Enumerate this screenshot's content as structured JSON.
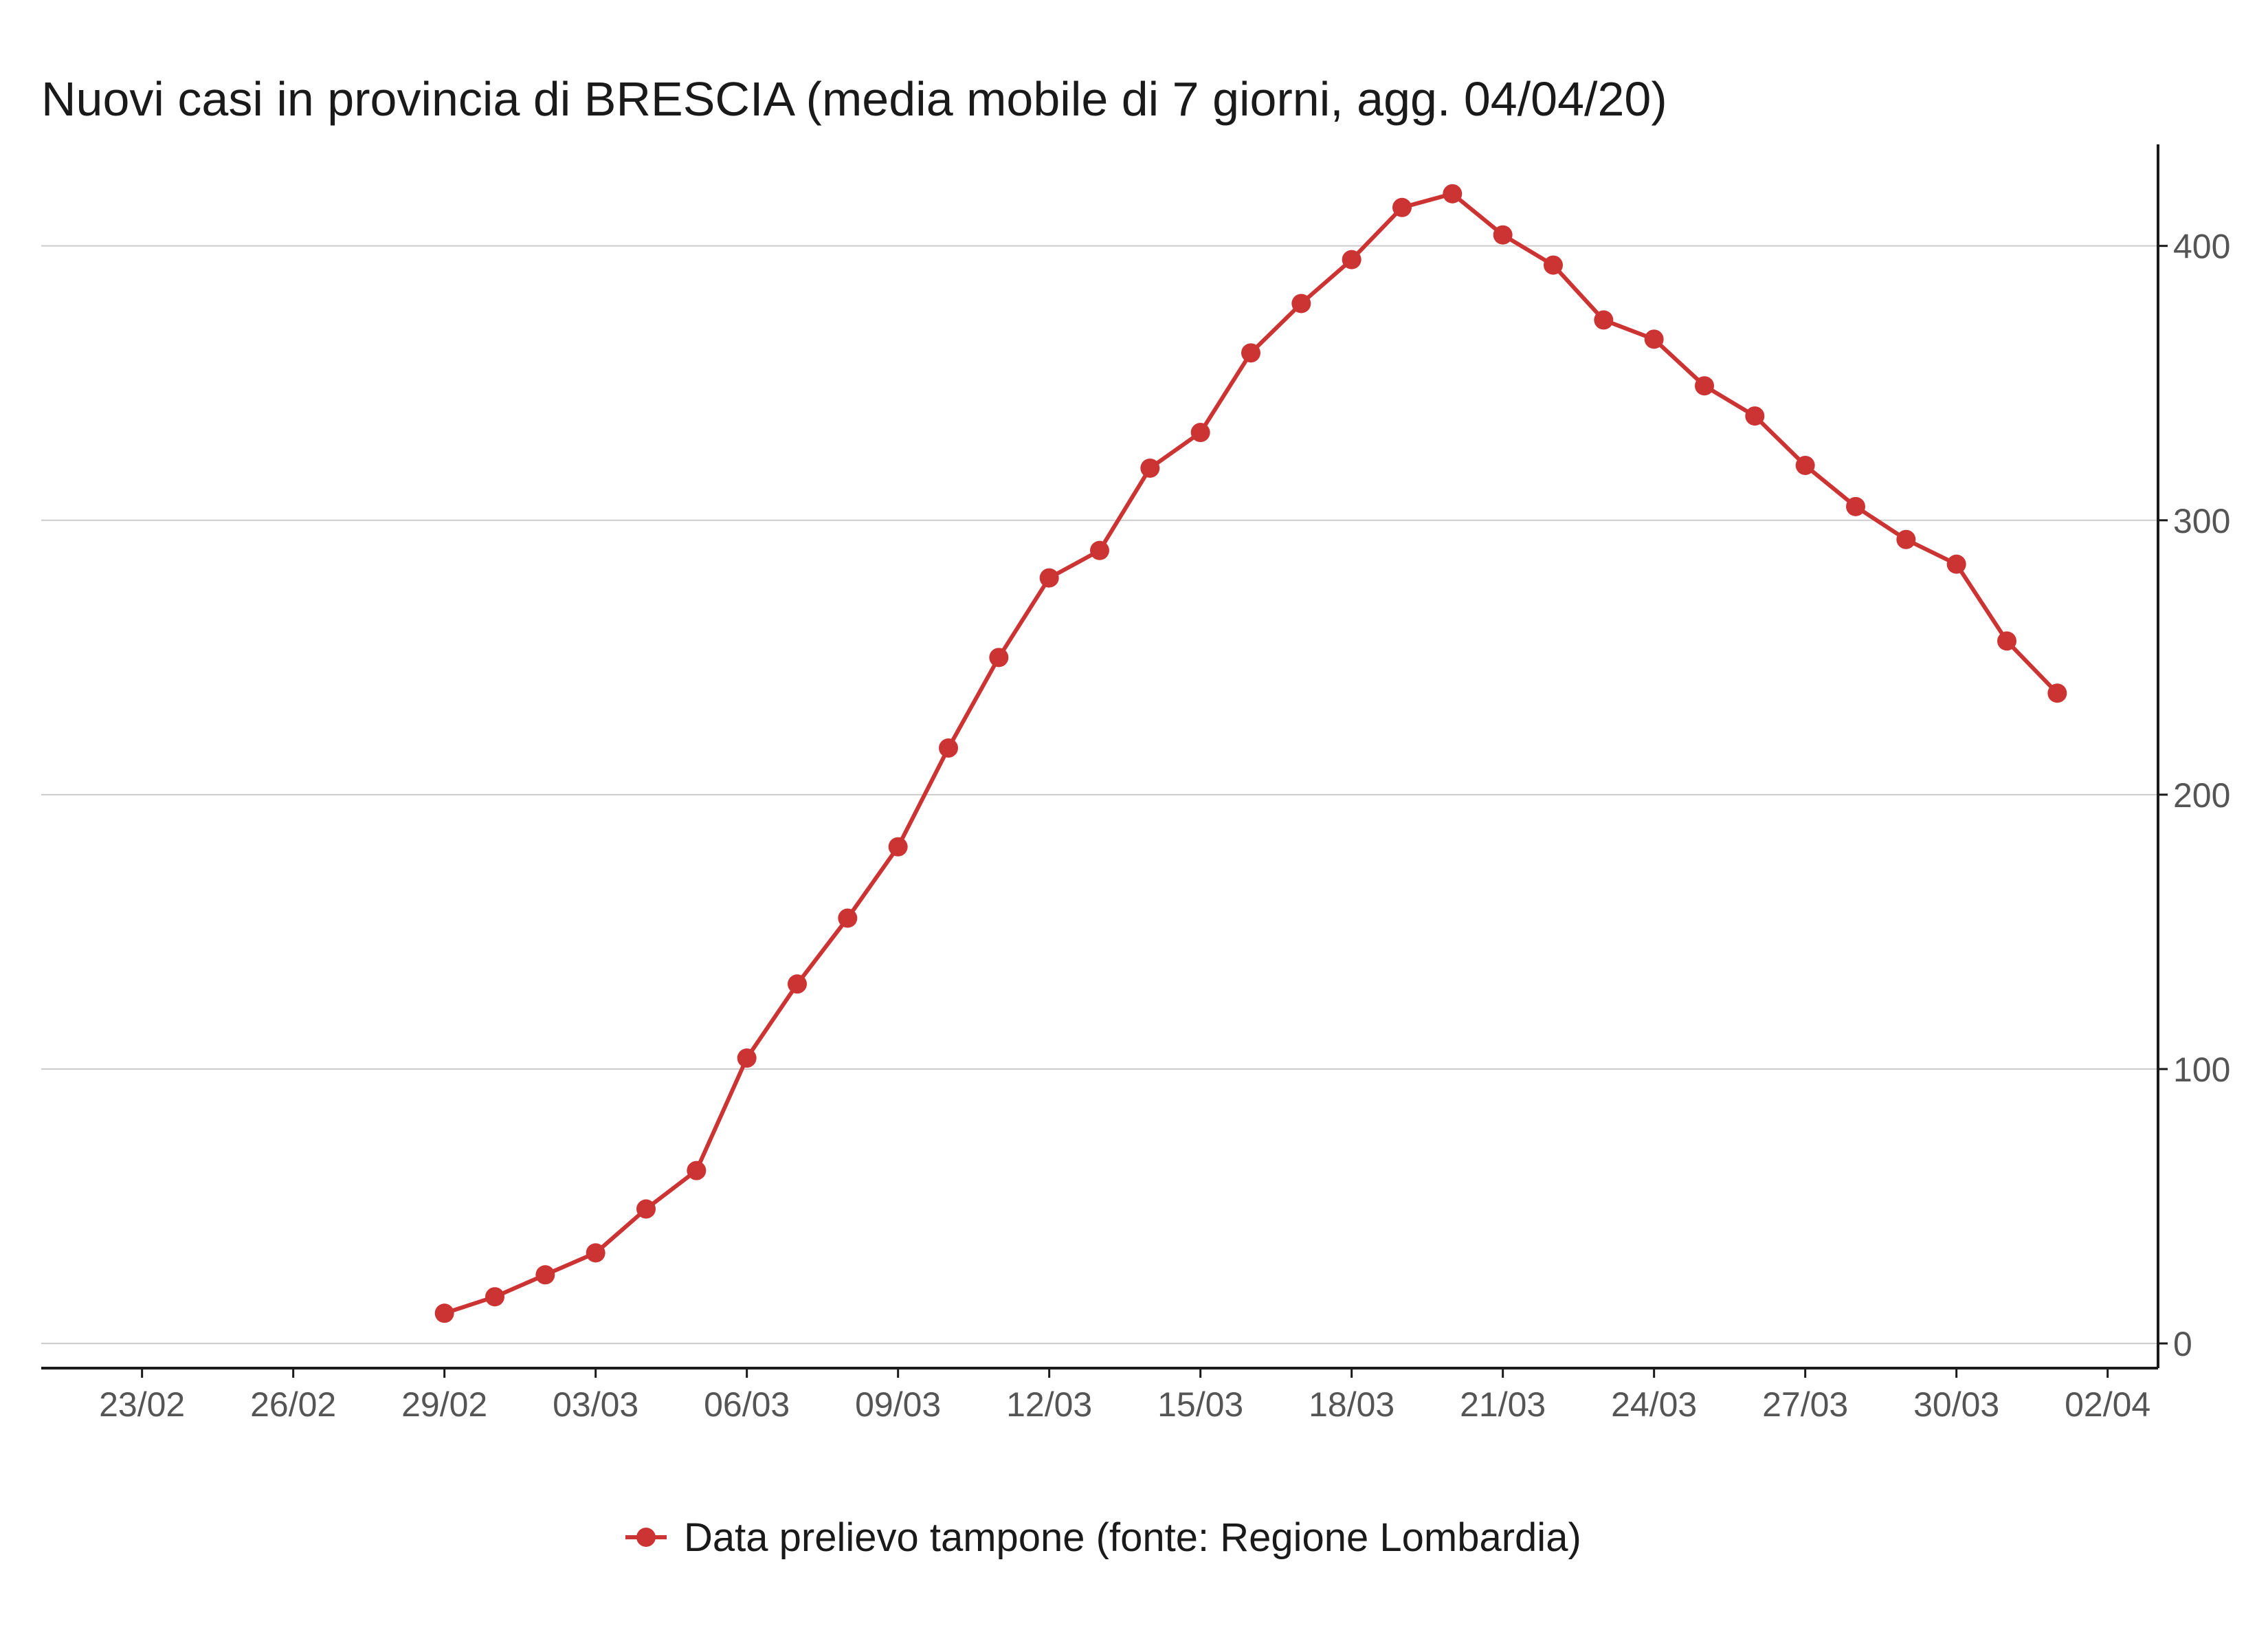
{
  "chart_data": {
    "type": "line",
    "title": "Nuovi casi in provincia di BRESCIA (media mobile di 7 giorni, agg. 04/04/20)",
    "xlabel": "",
    "ylabel": "",
    "x_ticks": [
      "23/02",
      "26/02",
      "29/02",
      "03/03",
      "06/03",
      "09/03",
      "12/03",
      "15/03",
      "18/03",
      "21/03",
      "24/03",
      "27/03",
      "30/03",
      "02/04"
    ],
    "y_ticks": [
      0,
      100,
      200,
      300,
      400
    ],
    "xlim": [
      "2020-02-21",
      "2020-04-03"
    ],
    "ylim": [
      -9,
      437
    ],
    "y_axis_position": "right",
    "grid": {
      "horizontal": true,
      "vertical": false
    },
    "legend_position": "bottom",
    "series": [
      {
        "name": "Data prelievo tampone (fonte: Regione Lombardia)",
        "color": "#cc3333",
        "marker": "circle",
        "points": [
          {
            "date": "2020-02-29",
            "value": 11
          },
          {
            "date": "2020-03-01",
            "value": 17
          },
          {
            "date": "2020-03-02",
            "value": 25
          },
          {
            "date": "2020-03-03",
            "value": 33
          },
          {
            "date": "2020-03-04",
            "value": 49
          },
          {
            "date": "2020-03-05",
            "value": 63
          },
          {
            "date": "2020-03-06",
            "value": 104
          },
          {
            "date": "2020-03-07",
            "value": 131
          },
          {
            "date": "2020-03-08",
            "value": 155
          },
          {
            "date": "2020-03-09",
            "value": 181
          },
          {
            "date": "2020-03-10",
            "value": 217
          },
          {
            "date": "2020-03-11",
            "value": 250
          },
          {
            "date": "2020-03-12",
            "value": 279
          },
          {
            "date": "2020-03-13",
            "value": 289
          },
          {
            "date": "2020-03-14",
            "value": 319
          },
          {
            "date": "2020-03-15",
            "value": 332
          },
          {
            "date": "2020-03-16",
            "value": 361
          },
          {
            "date": "2020-03-17",
            "value": 379
          },
          {
            "date": "2020-03-18",
            "value": 395
          },
          {
            "date": "2020-03-19",
            "value": 414
          },
          {
            "date": "2020-03-20",
            "value": 419
          },
          {
            "date": "2020-03-21",
            "value": 404
          },
          {
            "date": "2020-03-22",
            "value": 393
          },
          {
            "date": "2020-03-23",
            "value": 373
          },
          {
            "date": "2020-03-24",
            "value": 366
          },
          {
            "date": "2020-03-25",
            "value": 349
          },
          {
            "date": "2020-03-26",
            "value": 338
          },
          {
            "date": "2020-03-27",
            "value": 320
          },
          {
            "date": "2020-03-28",
            "value": 305
          },
          {
            "date": "2020-03-29",
            "value": 293
          },
          {
            "date": "2020-03-30",
            "value": 284
          },
          {
            "date": "2020-03-31",
            "value": 256
          },
          {
            "date": "2020-04-01",
            "value": 237
          }
        ]
      }
    ]
  }
}
